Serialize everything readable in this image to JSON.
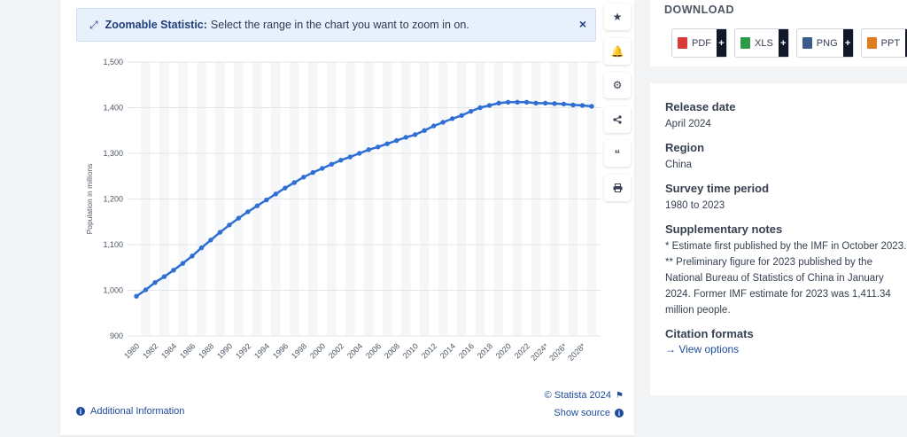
{
  "banner": {
    "title": "Zoomable Statistic:",
    "text": "Select the range in the chart you want to zoom in on.",
    "close": "×"
  },
  "toolbar": {
    "icons": [
      "star-icon",
      "bell-icon",
      "gear-icon",
      "share-icon",
      "quote-icon",
      "print-icon"
    ]
  },
  "footer": {
    "additional_info": "Additional Information",
    "copyright": "© Statista 2024",
    "show_source": "Show source"
  },
  "download": {
    "title": "DOWNLOAD",
    "buttons": [
      {
        "label": "PDF",
        "color": "#d93a3a"
      },
      {
        "label": "XLS",
        "color": "#2e9a46"
      },
      {
        "label": "PNG",
        "color": "#3b5b8a"
      },
      {
        "label": "PPT",
        "color": "#e07b1f"
      }
    ]
  },
  "details": {
    "release_date_label": "Release date",
    "release_date": "April 2024",
    "region_label": "Region",
    "region": "China",
    "survey_label": "Survey time period",
    "survey": "1980 to 2023",
    "notes_label": "Supplementary notes",
    "note1": "* Estimate first published by the IMF in October 2023.",
    "note2": "** Preliminary figure for 2023 published by the National Bureau of Statistics of China in January 2024. Former IMF estimate for 2023 was 1,411.34 million people.",
    "citation_label": "Citation formats",
    "citation_link": "View options"
  },
  "chart_data": {
    "type": "line",
    "ylabel": "Population in millions",
    "ylim": [
      900,
      1500
    ],
    "yticks": [
      900,
      1000,
      1100,
      1200,
      1300,
      1400,
      1500
    ],
    "x": [
      1980,
      1981,
      1982,
      1983,
      1984,
      1985,
      1986,
      1987,
      1988,
      1989,
      1990,
      1991,
      1992,
      1993,
      1994,
      1995,
      1996,
      1997,
      1998,
      1999,
      2000,
      2001,
      2002,
      2003,
      2004,
      2005,
      2006,
      2007,
      2008,
      2009,
      2010,
      2011,
      2012,
      2013,
      2014,
      2015,
      2016,
      2017,
      2018,
      2019,
      2020,
      2021,
      2022,
      2023,
      2024,
      2025,
      2026,
      2027,
      2028,
      2029
    ],
    "xtick_labels": [
      "1980",
      "1982",
      "1984",
      "1986",
      "1988",
      "1990",
      "1992",
      "1994",
      "1996",
      "1998",
      "2000",
      "2002",
      "2004",
      "2006",
      "2008",
      "2010",
      "2012",
      "2014",
      "2016",
      "2018",
      "2020",
      "2022",
      "2024*",
      "2026*",
      "2028*"
    ],
    "series": [
      {
        "color": "#2f6fd4",
        "values": [
          987,
          1001,
          1017,
          1030,
          1044,
          1059,
          1075,
          1093,
          1110,
          1127,
          1143,
          1158,
          1172,
          1185,
          1198,
          1211,
          1224,
          1236,
          1248,
          1258,
          1267,
          1276,
          1285,
          1292,
          1300,
          1308,
          1314,
          1321,
          1328,
          1335,
          1341,
          1350,
          1360,
          1368,
          1376,
          1383,
          1392,
          1400,
          1405,
          1410,
          1412,
          1412,
          1412,
          1410,
          1410,
          1409,
          1408,
          1406,
          1405,
          1403
        ]
      }
    ],
    "grid": true
  }
}
